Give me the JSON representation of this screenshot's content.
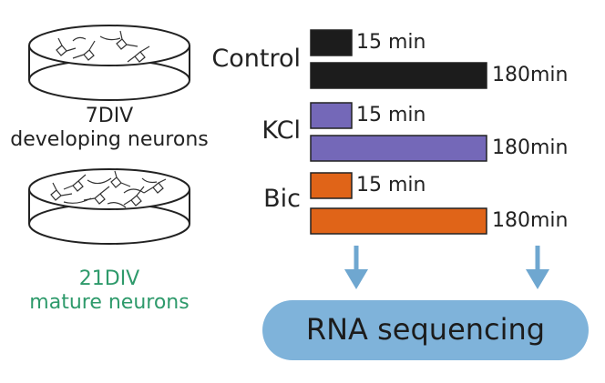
{
  "dishes": [
    {
      "div": "7DIV",
      "description": "developing neurons",
      "label_color": "#222222"
    },
    {
      "div": "21DIV",
      "description": "mature neurons",
      "label_color": "#2e9a6b"
    }
  ],
  "conditions": [
    {
      "name": "Control",
      "color": "#1c1c1c",
      "short_label": "15 min",
      "long_label": "180min"
    },
    {
      "name": "KCl",
      "color": "#7468b8",
      "short_label": "15 min",
      "long_label": "180min"
    },
    {
      "name": "Bic",
      "color": "#e06418",
      "short_label": "15 min",
      "long_label": "180min"
    }
  ],
  "arrow_color": "#6fa7d0",
  "output": {
    "label": "RNA sequencing",
    "color": "#7fb3da"
  }
}
